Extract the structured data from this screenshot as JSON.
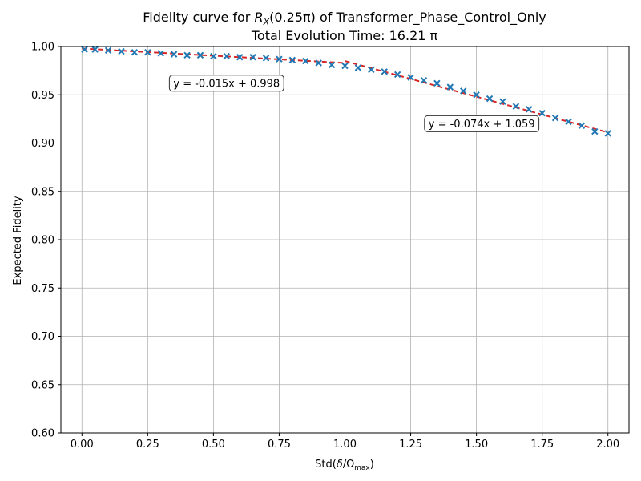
{
  "chart_data": {
    "type": "scatter",
    "title_line1": {
      "prefix": "Fidelity curve for ",
      "gate_symbol": "R",
      "gate_subscript": "X",
      "gate_argument": "(0.25π)",
      "suffix": " of Transformer_Phase_Control_Only"
    },
    "title_line2": "Total Evolution Time: 16.21 π",
    "xlabel": {
      "prefix": "Std(",
      "delta": "δ",
      "slash": "/",
      "omega": "Ω",
      "omega_subscript": "max",
      "suffix": ")"
    },
    "ylabel": "Expected Fidelity",
    "xlim": [
      -0.08,
      2.08
    ],
    "ylim": [
      0.6,
      1.0
    ],
    "xticks": [
      0.0,
      0.25,
      0.5,
      0.75,
      1.0,
      1.25,
      1.5,
      1.75,
      2.0
    ],
    "xtick_labels": [
      "0.00",
      "0.25",
      "0.50",
      "0.75",
      "1.00",
      "1.25",
      "1.50",
      "1.75",
      "2.00"
    ],
    "yticks": [
      0.6,
      0.65,
      0.7,
      0.75,
      0.8,
      0.85,
      0.9,
      0.95,
      1.0
    ],
    "ytick_labels": [
      "0.60",
      "0.65",
      "0.70",
      "0.75",
      "0.80",
      "0.85",
      "0.90",
      "0.95",
      "1.00"
    ],
    "grid": true,
    "colors": {
      "points": "#1f77b4",
      "fit": "#d62728"
    },
    "series": [
      {
        "marker": "x",
        "x": [
          0.01,
          0.05,
          0.1,
          0.15,
          0.2,
          0.25,
          0.3,
          0.35,
          0.4,
          0.45,
          0.5,
          0.55,
          0.6,
          0.65,
          0.7,
          0.75,
          0.8,
          0.85,
          0.9,
          0.95,
          1.0,
          1.05,
          1.1,
          1.15,
          1.2,
          1.25,
          1.3,
          1.35,
          1.4,
          1.45,
          1.5,
          1.55,
          1.6,
          1.65,
          1.7,
          1.75,
          1.8,
          1.85,
          1.9,
          1.95,
          2.0
        ],
        "y": [
          0.997,
          0.997,
          0.996,
          0.995,
          0.994,
          0.994,
          0.993,
          0.992,
          0.991,
          0.991,
          0.99,
          0.99,
          0.989,
          0.989,
          0.988,
          0.987,
          0.986,
          0.985,
          0.983,
          0.981,
          0.98,
          0.978,
          0.976,
          0.974,
          0.971,
          0.968,
          0.965,
          0.962,
          0.958,
          0.954,
          0.95,
          0.946,
          0.943,
          0.938,
          0.935,
          0.931,
          0.926,
          0.922,
          0.918,
          0.912,
          0.91
        ]
      }
    ],
    "fits": [
      {
        "slope": -0.015,
        "intercept": 0.998,
        "x_range": [
          0.0,
          1.0
        ],
        "label": "y = -0.015x + 0.998",
        "label_x": 0.55,
        "label_y": 0.962
      },
      {
        "slope": -0.074,
        "intercept": 1.059,
        "x_range": [
          1.0,
          2.0
        ],
        "label": "y = -0.074x + 1.059",
        "label_x": 1.52,
        "label_y": 0.92
      }
    ]
  }
}
